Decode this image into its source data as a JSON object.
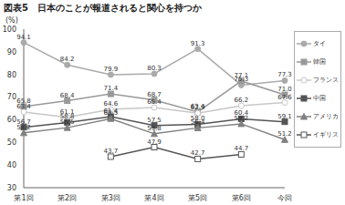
{
  "chart_data": {
    "type": "line",
    "title": "図表5　日本のことが報道されると関心を持つか",
    "y_label": "(%)",
    "categories": [
      "第1回",
      "第2回",
      "第3回",
      "第4回",
      "第5回",
      "第6回",
      "今回"
    ],
    "ylim": [
      30,
      100
    ],
    "yticks": [
      30,
      40,
      50,
      60,
      70,
      80,
      90,
      100
    ],
    "grid": false,
    "legend": "right",
    "data_labels": true,
    "series": [
      {
        "name": "タイ",
        "color": "#aaaaaa",
        "marker": "circle",
        "values": [
          94.1,
          84.2,
          79.9,
          80.3,
          91.3,
          75.3,
          77.3
        ],
        "value_labels": [
          "94.1",
          "84.2",
          "79.9",
          "80.3",
          "91.3",
          "75.3",
          "77.3"
        ]
      },
      {
        "name": "韓国",
        "color": "#999999",
        "marker": "square",
        "values": [
          65.8,
          68.4,
          71.4,
          68.7,
          63.4,
          77.1,
          71.0
        ],
        "value_labels": [
          "65.8",
          "68.4",
          "71.4",
          "68.7",
          "63.4",
          "77.1",
          "71.0"
        ]
      },
      {
        "name": "フランス",
        "color": "#c8c8c8",
        "marker": "open_circle",
        "values": [
          63.4,
          61.1,
          64.6,
          65.4,
          62.9,
          66.2,
          67.6
        ],
        "value_labels": [
          "63.4",
          "61.1",
          "64.6",
          "65.4",
          "62.9",
          "66.2",
          "67.6"
        ]
      },
      {
        "name": "中国",
        "color": "#555555",
        "marker": "square",
        "values": [
          56.7,
          58.8,
          61.4,
          57.5,
          58.0,
          60.4,
          59.1
        ],
        "value_labels": [
          "56.7",
          "58.8",
          "61.4",
          "57.5",
          "58.0",
          "60.4",
          "59.1"
        ]
      },
      {
        "name": "アメリカ",
        "color": "#808080",
        "marker": "triangle",
        "values": [
          54.2,
          56.5,
          60.5,
          53.8,
          56.4,
          58.2,
          51.2
        ],
        "value_labels": [
          "54.2",
          "56.5",
          "60.5",
          "53.8",
          "56.4",
          "58.2",
          "51.2"
        ]
      },
      {
        "name": "イギリス",
        "color": "#555555",
        "marker": "open_square",
        "values": [
          null,
          null,
          43.7,
          47.9,
          42.7,
          44.7,
          null
        ],
        "value_labels": [
          null,
          null,
          "43.7",
          "47.9",
          "42.7",
          "44.7",
          null
        ]
      }
    ]
  }
}
